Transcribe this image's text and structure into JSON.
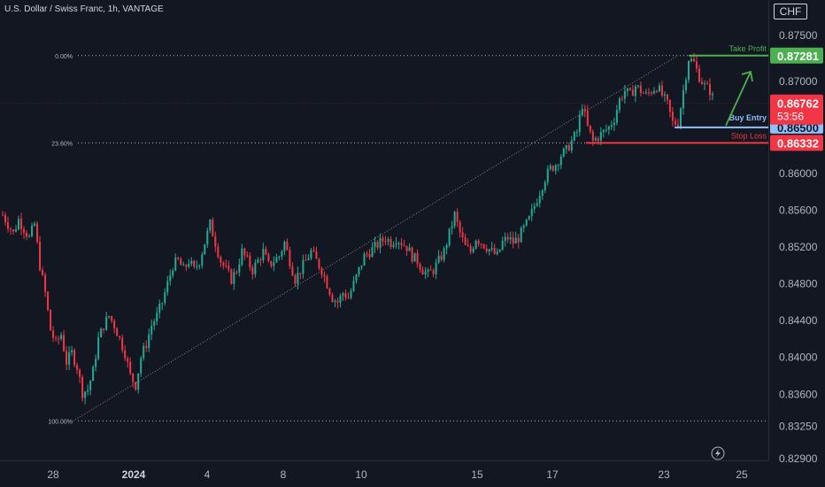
{
  "title": "U.S. Dollar / Swiss Franc, 1h, VANTAGE",
  "currency": "CHF",
  "colors": {
    "background": "#131722",
    "up": "#22ab94",
    "down": "#f23645",
    "green_label": "#4caf50",
    "blue_label": "#90bff9",
    "red_label": "#f23645",
    "text": "#b2b5be"
  },
  "chart_data": {
    "type": "candlestick",
    "x_ticks": [
      "28",
      "2024",
      "4",
      "8",
      "10",
      "15",
      "17",
      "23",
      "25"
    ],
    "y_ticks": [
      "0.87500",
      "0.87000",
      "0.86500",
      "0.86000",
      "0.85600",
      "0.85200",
      "0.84800",
      "0.84400",
      "0.84000",
      "0.83600",
      "0.83250",
      "0.82900"
    ],
    "ylim": [
      0.829,
      0.877
    ],
    "fib_levels": [
      {
        "label": "0.00%",
        "value": 0.87281
      },
      {
        "label": "23.60%",
        "value": 0.86332
      },
      {
        "label": "100.00%",
        "value": 0.8331
      }
    ],
    "trade_levels": [
      {
        "name": "Take Profit",
        "value": 0.87281,
        "badge": "0.87281",
        "color": "#4caf50"
      },
      {
        "name": "Buy Entry",
        "value": 0.865,
        "badge": "0.86500",
        "color": "#90bff9"
      },
      {
        "name": "Stop Loss",
        "value": 0.86332,
        "badge": "0.86332",
        "color": "#f23645"
      }
    ],
    "current_price": {
      "value": 0.86762,
      "label": "0.86762",
      "countdown": "53:56"
    },
    "trend_line": {
      "from": {
        "x_frac": 0.095,
        "value": 0.8331
      },
      "to": {
        "x_frac": 0.836,
        "value": 0.87281
      }
    },
    "path_points": [
      [
        0,
        0.8555
      ],
      [
        2,
        0.8545
      ],
      [
        4,
        0.8535
      ],
      [
        6,
        0.855
      ],
      [
        8,
        0.854
      ],
      [
        10,
        0.853
      ],
      [
        12,
        0.8545
      ],
      [
        14,
        0.85
      ],
      [
        16,
        0.847
      ],
      [
        18,
        0.843
      ],
      [
        20,
        0.8415
      ],
      [
        22,
        0.8425
      ],
      [
        24,
        0.8395
      ],
      [
        26,
        0.8405
      ],
      [
        28,
        0.839
      ],
      [
        30,
        0.8362
      ],
      [
        32,
        0.8365
      ],
      [
        34,
        0.8385
      ],
      [
        36,
        0.842
      ],
      [
        38,
        0.8435
      ],
      [
        40,
        0.8445
      ],
      [
        42,
        0.8435
      ],
      [
        44,
        0.842
      ],
      [
        46,
        0.8405
      ],
      [
        48,
        0.838
      ],
      [
        50,
        0.837
      ],
      [
        52,
        0.84
      ],
      [
        54,
        0.8415
      ],
      [
        56,
        0.8435
      ],
      [
        58,
        0.8445
      ],
      [
        60,
        0.846
      ],
      [
        62,
        0.848
      ],
      [
        64,
        0.85
      ],
      [
        66,
        0.8505
      ],
      [
        68,
        0.8495
      ],
      [
        70,
        0.8505
      ],
      [
        72,
        0.8495
      ],
      [
        74,
        0.8505
      ],
      [
        76,
        0.8525
      ],
      [
        78,
        0.8545
      ],
      [
        80,
        0.8525
      ],
      [
        82,
        0.8505
      ],
      [
        84,
        0.8495
      ],
      [
        86,
        0.8485
      ],
      [
        88,
        0.8495
      ],
      [
        90,
        0.8515
      ],
      [
        92,
        0.8505
      ],
      [
        94,
        0.8495
      ],
      [
        96,
        0.8505
      ],
      [
        98,
        0.8515
      ],
      [
        100,
        0.85
      ],
      [
        102,
        0.8505
      ],
      [
        104,
        0.851
      ],
      [
        106,
        0.8525
      ],
      [
        108,
        0.8505
      ],
      [
        110,
        0.8485
      ],
      [
        112,
        0.8495
      ],
      [
        114,
        0.8505
      ],
      [
        116,
        0.8515
      ],
      [
        118,
        0.8505
      ],
      [
        120,
        0.8495
      ],
      [
        122,
        0.848
      ],
      [
        124,
        0.8465
      ],
      [
        126,
        0.846
      ],
      [
        128,
        0.847
      ],
      [
        130,
        0.8465
      ],
      [
        132,
        0.848
      ],
      [
        134,
        0.8495
      ],
      [
        136,
        0.851
      ],
      [
        138,
        0.8515
      ],
      [
        140,
        0.852
      ],
      [
        142,
        0.8525
      ],
      [
        144,
        0.853
      ],
      [
        146,
        0.8525
      ],
      [
        148,
        0.853
      ],
      [
        150,
        0.8525
      ],
      [
        152,
        0.852
      ],
      [
        154,
        0.851
      ],
      [
        156,
        0.8505
      ],
      [
        158,
        0.8495
      ],
      [
        160,
        0.849
      ],
      [
        162,
        0.8495
      ],
      [
        164,
        0.8505
      ],
      [
        166,
        0.8515
      ],
      [
        168,
        0.8535
      ],
      [
        170,
        0.8555
      ],
      [
        172,
        0.8535
      ],
      [
        174,
        0.852
      ],
      [
        176,
        0.8515
      ],
      [
        178,
        0.853
      ],
      [
        180,
        0.8525
      ],
      [
        182,
        0.852
      ],
      [
        184,
        0.8515
      ],
      [
        186,
        0.851
      ],
      [
        188,
        0.8525
      ],
      [
        190,
        0.853
      ],
      [
        192,
        0.8525
      ],
      [
        194,
        0.853
      ],
      [
        196,
        0.854
      ],
      [
        198,
        0.855
      ],
      [
        200,
        0.8565
      ],
      [
        202,
        0.858
      ],
      [
        204,
        0.8595
      ],
      [
        206,
        0.8605
      ],
      [
        208,
        0.861
      ],
      [
        210,
        0.862
      ],
      [
        212,
        0.8625
      ],
      [
        214,
        0.8635
      ],
      [
        216,
        0.8645
      ],
      [
        218,
        0.8675
      ],
      [
        220,
        0.865
      ],
      [
        222,
        0.8635
      ],
      [
        224,
        0.864
      ],
      [
        226,
        0.8645
      ],
      [
        228,
        0.865
      ],
      [
        230,
        0.866
      ],
      [
        232,
        0.868
      ],
      [
        234,
        0.869
      ],
      [
        236,
        0.8685
      ],
      [
        238,
        0.8695
      ],
      [
        240,
        0.869
      ],
      [
        242,
        0.8685
      ],
      [
        244,
        0.869
      ],
      [
        246,
        0.8695
      ],
      [
        248,
        0.8685
      ],
      [
        250,
        0.8675
      ],
      [
        252,
        0.8655
      ],
      [
        254,
        0.8655
      ],
      [
        256,
        0.869
      ],
      [
        258,
        0.8725
      ],
      [
        260,
        0.872
      ],
      [
        262,
        0.8705
      ],
      [
        264,
        0.8695
      ],
      [
        266,
        0.869
      ],
      [
        268,
        0.8675
      ]
    ],
    "projection_arrow": {
      "from_value": 0.8652,
      "to_value": 0.8725
    }
  }
}
